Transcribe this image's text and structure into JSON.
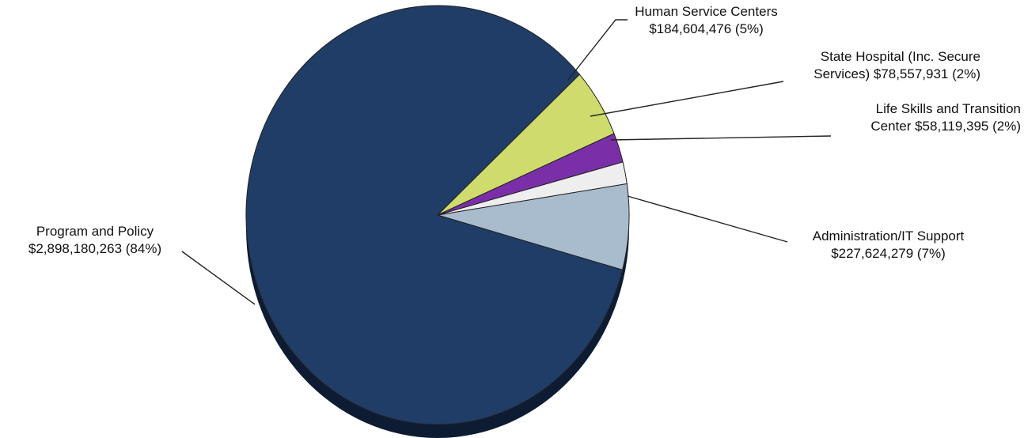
{
  "chart_data": {
    "type": "pie",
    "title": "",
    "slices": [
      {
        "label_lines": [
          "Program and Policy",
          "$2,898,180,263 (84%)"
        ],
        "value": 2898180263,
        "percent": 84,
        "color": "#1f3d66"
      },
      {
        "label_lines": [
          "Human Service Centers",
          "$184,604,476 (5%)"
        ],
        "value": 184604476,
        "percent": 5,
        "color": "#cfdb6c"
      },
      {
        "label_lines": [
          "State Hospital (Inc. Secure",
          "Services) $78,557,931 (2%)"
        ],
        "value": 78557931,
        "percent": 2,
        "color": "#7a2fa8"
      },
      {
        "label_lines": [
          "Life Skills and Transition",
          "Center $58,119,395 (2%)"
        ],
        "value": 58119395,
        "percent": 2,
        "color": "#eeeeee"
      },
      {
        "label_lines": [
          "Administration/IT Support",
          "$227,624,279 (7%)"
        ],
        "value": 227624279,
        "percent": 7,
        "color": "#a9bccd"
      }
    ]
  }
}
